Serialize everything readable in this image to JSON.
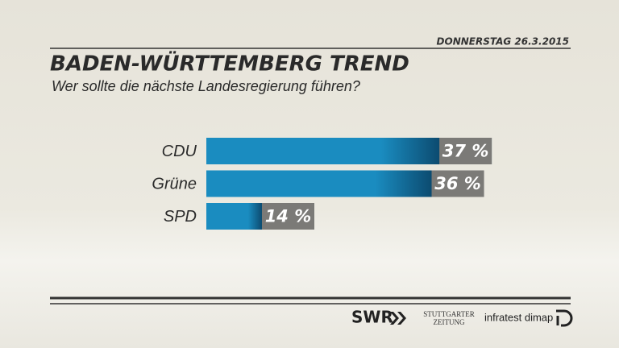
{
  "chart_data": {
    "type": "hbar",
    "date": "DONNERSTAG 26.3.2015",
    "title": "BADEN-WÜRTTEMBERG TREND",
    "subtitle": "Wer sollte die nächste Landesregierung führen?",
    "categories": [
      "CDU",
      "Grüne",
      "SPD"
    ],
    "values": [
      37,
      36,
      14
    ],
    "value_labels": [
      "37 %",
      "36 %",
      "14 %"
    ],
    "color": "#1a8cc0",
    "footer": [
      "SWR",
      "STUTTGARTER",
      "ZEITUNG",
      "infratest dimap"
    ]
  }
}
